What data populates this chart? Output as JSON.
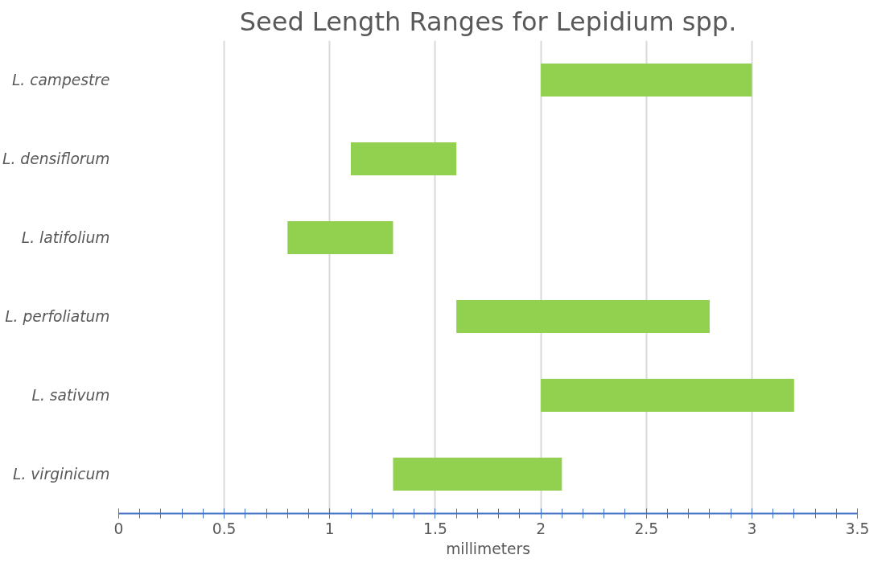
{
  "chart_data": {
    "type": "bar",
    "orientation": "horizontal",
    "title": "Seed Length Ranges for Lepidium spp.",
    "xlabel": "millimeters",
    "categories": [
      "L. campestre",
      "L. densiflorum",
      "L. latifolium",
      "L. perfoliatum",
      "L. sativum",
      "L. virginicum"
    ],
    "base": [
      2,
      1.1,
      0.8,
      1.6,
      2,
      1.3
    ],
    "values": [
      1,
      0.5,
      0.5,
      1.2,
      1.2,
      0.8
    ],
    "color": "#92d050",
    "xlim": [
      0,
      3.5
    ],
    "xticks": [
      0,
      0.5,
      1,
      1.5,
      2,
      2.5,
      3,
      3.5
    ],
    "grid": "x"
  }
}
